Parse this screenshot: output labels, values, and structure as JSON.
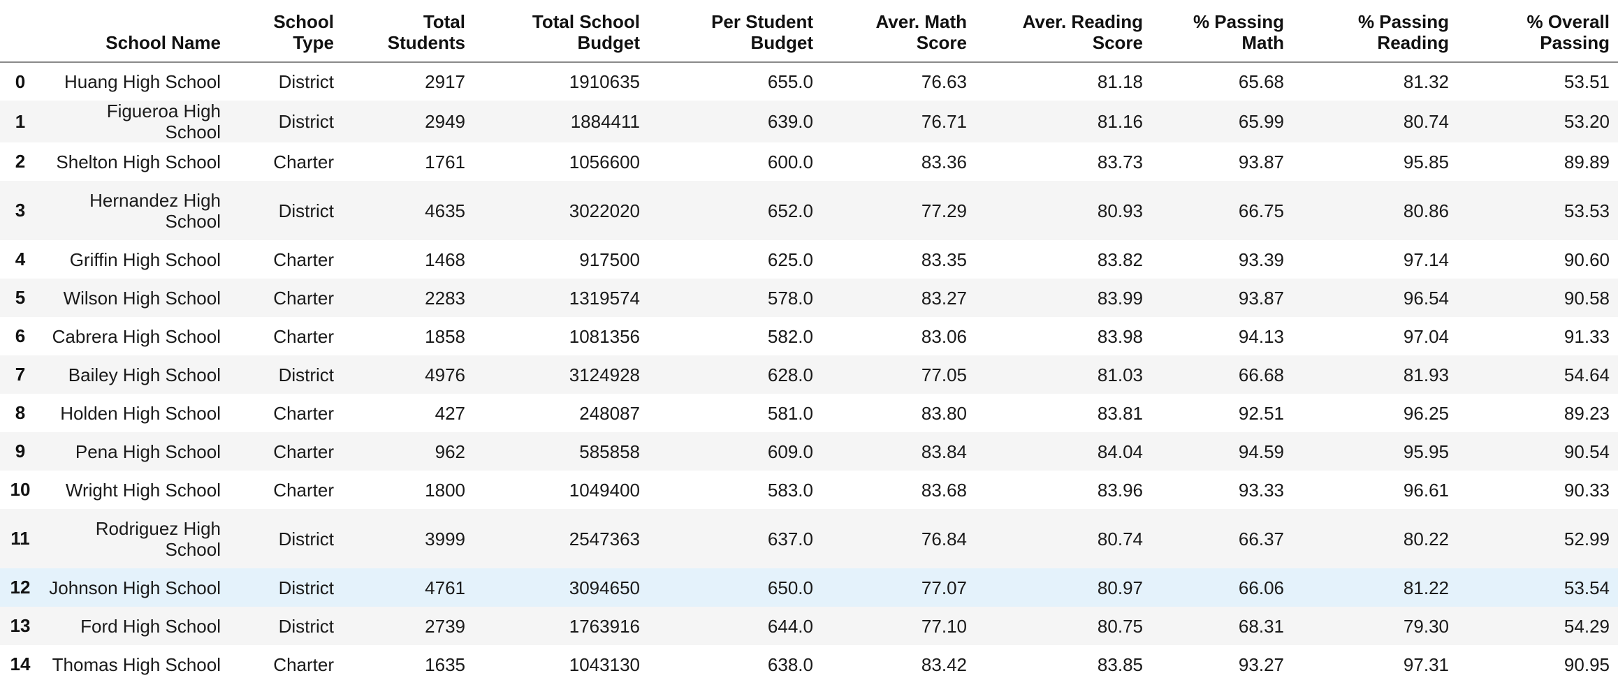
{
  "columns": {
    "index": "",
    "school_name": "School Name",
    "school_type": [
      "School",
      "Type"
    ],
    "total_students": [
      "Total",
      "Students"
    ],
    "total_budget": [
      "Total School",
      "Budget"
    ],
    "per_student_budget": [
      "Per Student",
      "Budget"
    ],
    "avg_math": [
      "Aver. Math",
      "Score"
    ],
    "avg_reading": [
      "Aver. Reading",
      "Score"
    ],
    "pct_math": [
      "% Passing",
      "Math"
    ],
    "pct_reading": [
      "% Passing",
      "Reading"
    ],
    "pct_overall": [
      "% Overall",
      "Passing"
    ]
  },
  "rows": [
    {
      "idx": "0",
      "name": [
        "Huang High School"
      ],
      "type": "District",
      "students": "2917",
      "budget": "1910635",
      "per": "655.0",
      "math": "76.63",
      "reading": "81.18",
      "pmath": "65.68",
      "pread": "81.32",
      "overall": "53.51"
    },
    {
      "idx": "1",
      "name": [
        "Figueroa High School"
      ],
      "type": "District",
      "students": "2949",
      "budget": "1884411",
      "per": "639.0",
      "math": "76.71",
      "reading": "81.16",
      "pmath": "65.99",
      "pread": "80.74",
      "overall": "53.20"
    },
    {
      "idx": "2",
      "name": [
        "Shelton High School"
      ],
      "type": "Charter",
      "students": "1761",
      "budget": "1056600",
      "per": "600.0",
      "math": "83.36",
      "reading": "83.73",
      "pmath": "93.87",
      "pread": "95.85",
      "overall": "89.89"
    },
    {
      "idx": "3",
      "name": [
        "Hernandez High",
        "School"
      ],
      "type": "District",
      "students": "4635",
      "budget": "3022020",
      "per": "652.0",
      "math": "77.29",
      "reading": "80.93",
      "pmath": "66.75",
      "pread": "80.86",
      "overall": "53.53"
    },
    {
      "idx": "4",
      "name": [
        "Griffin High School"
      ],
      "type": "Charter",
      "students": "1468",
      "budget": "917500",
      "per": "625.0",
      "math": "83.35",
      "reading": "83.82",
      "pmath": "93.39",
      "pread": "97.14",
      "overall": "90.60"
    },
    {
      "idx": "5",
      "name": [
        "Wilson High School"
      ],
      "type": "Charter",
      "students": "2283",
      "budget": "1319574",
      "per": "578.0",
      "math": "83.27",
      "reading": "83.99",
      "pmath": "93.87",
      "pread": "96.54",
      "overall": "90.58"
    },
    {
      "idx": "6",
      "name": [
        "Cabrera High School"
      ],
      "type": "Charter",
      "students": "1858",
      "budget": "1081356",
      "per": "582.0",
      "math": "83.06",
      "reading": "83.98",
      "pmath": "94.13",
      "pread": "97.04",
      "overall": "91.33"
    },
    {
      "idx": "7",
      "name": [
        "Bailey High School"
      ],
      "type": "District",
      "students": "4976",
      "budget": "3124928",
      "per": "628.0",
      "math": "77.05",
      "reading": "81.03",
      "pmath": "66.68",
      "pread": "81.93",
      "overall": "54.64"
    },
    {
      "idx": "8",
      "name": [
        "Holden High School"
      ],
      "type": "Charter",
      "students": "427",
      "budget": "248087",
      "per": "581.0",
      "math": "83.80",
      "reading": "83.81",
      "pmath": "92.51",
      "pread": "96.25",
      "overall": "89.23"
    },
    {
      "idx": "9",
      "name": [
        "Pena High School"
      ],
      "type": "Charter",
      "students": "962",
      "budget": "585858",
      "per": "609.0",
      "math": "83.84",
      "reading": "84.04",
      "pmath": "94.59",
      "pread": "95.95",
      "overall": "90.54"
    },
    {
      "idx": "10",
      "name": [
        "Wright High School"
      ],
      "type": "Charter",
      "students": "1800",
      "budget": "1049400",
      "per": "583.0",
      "math": "83.68",
      "reading": "83.96",
      "pmath": "93.33",
      "pread": "96.61",
      "overall": "90.33"
    },
    {
      "idx": "11",
      "name": [
        "Rodriguez High",
        "School"
      ],
      "type": "District",
      "students": "3999",
      "budget": "2547363",
      "per": "637.0",
      "math": "76.84",
      "reading": "80.74",
      "pmath": "66.37",
      "pread": "80.22",
      "overall": "52.99"
    },
    {
      "idx": "12",
      "name": [
        "Johnson High School"
      ],
      "type": "District",
      "students": "4761",
      "budget": "3094650",
      "per": "650.0",
      "math": "77.07",
      "reading": "80.97",
      "pmath": "66.06",
      "pread": "81.22",
      "overall": "53.54"
    },
    {
      "idx": "13",
      "name": [
        "Ford High School"
      ],
      "type": "District",
      "students": "2739",
      "budget": "1763916",
      "per": "644.0",
      "math": "77.10",
      "reading": "80.75",
      "pmath": "68.31",
      "pread": "79.30",
      "overall": "54.29"
    },
    {
      "idx": "14",
      "name": [
        "Thomas High School"
      ],
      "type": "Charter",
      "students": "1635",
      "budget": "1043130",
      "per": "638.0",
      "math": "83.42",
      "reading": "83.85",
      "pmath": "93.27",
      "pread": "97.31",
      "overall": "90.95"
    }
  ],
  "highlighted_row": "12",
  "colors": {
    "stripe": "#f5f5f5",
    "hover": "#e4f2fb",
    "header_rule": "#8a8a8a"
  }
}
